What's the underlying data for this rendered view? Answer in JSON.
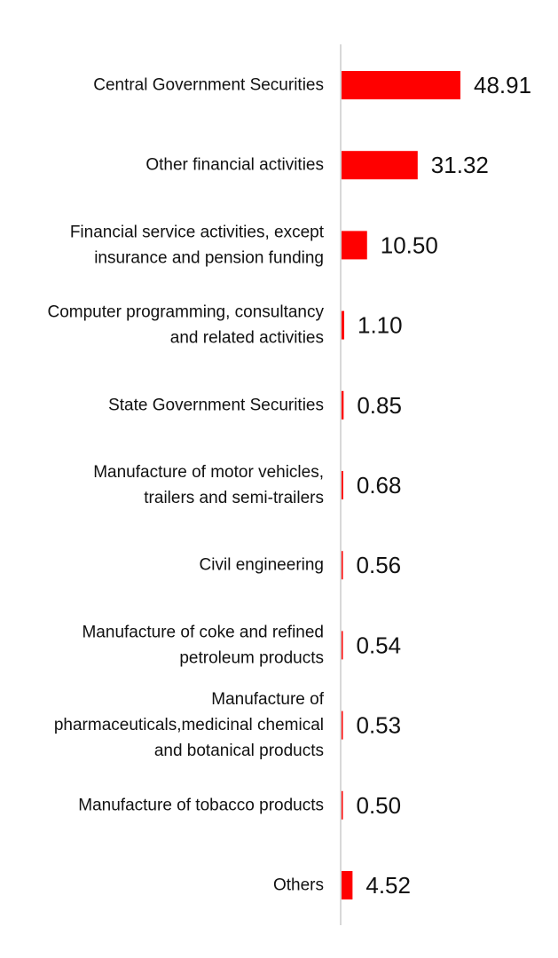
{
  "chart_data": {
    "type": "bar",
    "orientation": "horizontal",
    "title": "",
    "xlabel": "",
    "ylabel": "",
    "bar_color": "#ff0000",
    "axis_color": "#cccccc",
    "grid": false,
    "legend": "none",
    "xlim": [
      0,
      50
    ],
    "categories": [
      [
        "Central Government Securities"
      ],
      [
        "Other financial activities"
      ],
      [
        "Financial service activities, except",
        "insurance and pension funding"
      ],
      [
        "Computer programming, consultancy",
        "and related activities"
      ],
      [
        "State Government Securities"
      ],
      [
        "Manufacture of motor vehicles,",
        "trailers and semi-trailers"
      ],
      [
        "Civil engineering"
      ],
      [
        "Manufacture of coke and refined",
        "petroleum products"
      ],
      [
        "Manufacture of",
        "pharmaceuticals,medicinal chemical",
        "and botanical products"
      ],
      [
        "Manufacture of tobacco products"
      ],
      [
        "Others"
      ]
    ],
    "values": [
      48.91,
      31.32,
      10.5,
      1.1,
      0.85,
      0.68,
      0.56,
      0.54,
      0.53,
      0.5,
      4.52
    ],
    "value_labels": [
      "48.91",
      "31.32",
      "10.50",
      "1.10",
      "0.85",
      "0.68",
      "0.56",
      "0.54",
      "0.53",
      "0.50",
      "4.52"
    ]
  }
}
